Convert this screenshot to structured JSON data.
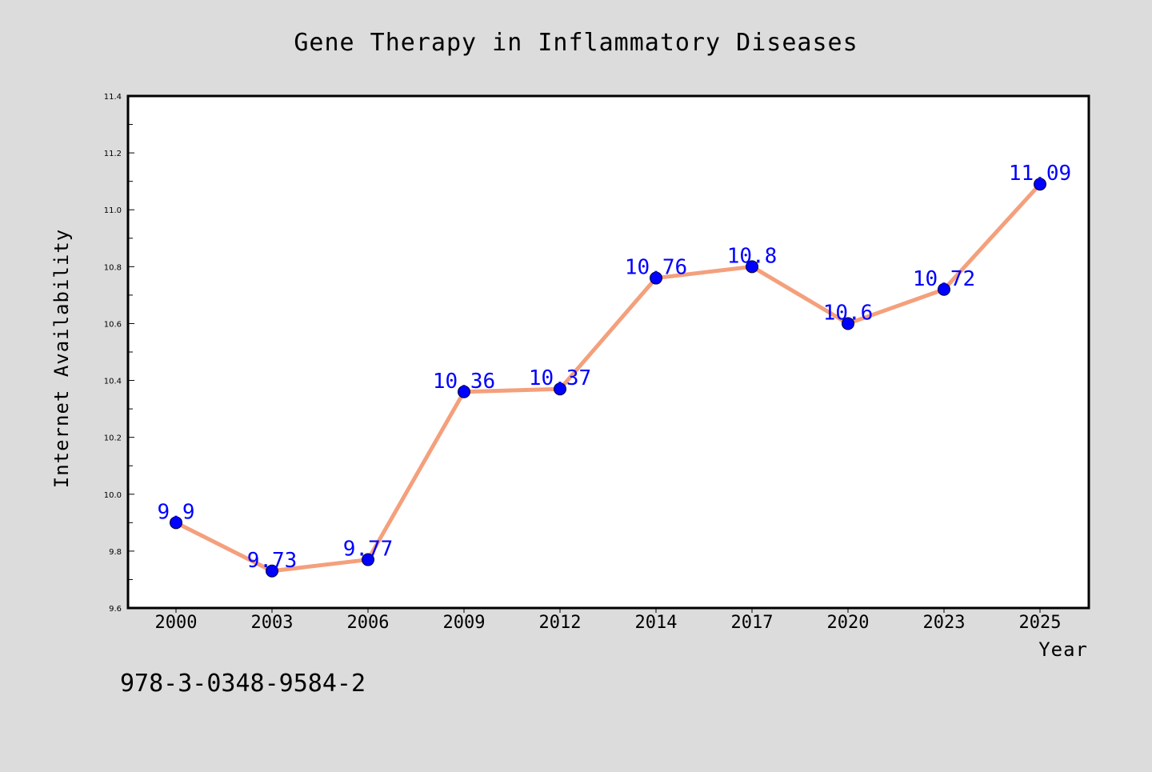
{
  "chart_data": {
    "type": "line",
    "title": "Gene Therapy in Inflammatory Diseases",
    "xlabel": "Year",
    "ylabel": "Internet Availability",
    "categories": [
      "2000",
      "2003",
      "2006",
      "2009",
      "2012",
      "2014",
      "2017",
      "2020",
      "2023",
      "2025"
    ],
    "series": [
      {
        "values": [
          9.9,
          9.73,
          9.77,
          10.36,
          10.37,
          10.76,
          10.8,
          10.6,
          10.72,
          11.09
        ]
      }
    ],
    "data_labels": [
      "9.9",
      "9.73",
      "9.77",
      "10.36",
      "10.37",
      "10.76",
      "10.8",
      "10.6",
      "10.72",
      "11.09"
    ],
    "ylim": [
      9.6,
      11.4
    ],
    "yticks": [
      "9.6",
      "9.8",
      "10.0",
      "10.2",
      "10.4",
      "10.6",
      "10.8",
      "11.0",
      "11.2",
      "11.4"
    ],
    "grid": false,
    "legend": "none",
    "colors": {
      "line": "#f4a07c",
      "marker": "#0000ff",
      "label": "#0000ff",
      "background": "#dcdcdc",
      "plot_background": "#ffffff"
    }
  },
  "footer": {
    "isbn": "978-3-0348-9584-2"
  }
}
